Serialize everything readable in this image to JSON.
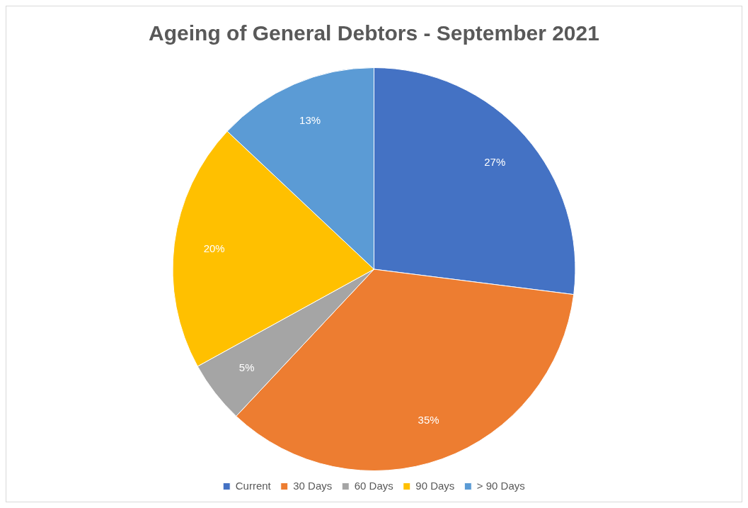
{
  "chart_data": {
    "type": "pie",
    "title": "Ageing of General Debtors - September 2021",
    "categories": [
      "Current",
      "30 Days",
      "60 Days",
      "90 Days",
      "> 90 Days"
    ],
    "values": [
      27,
      35,
      5,
      20,
      13
    ],
    "colors": [
      "#4472c4",
      "#ed7d31",
      "#a5a5a5",
      "#ffc000",
      "#5b9bd5"
    ],
    "value_labels": [
      "27%",
      "35%",
      "5%",
      "20%",
      "13%"
    ],
    "legend": "bottom"
  }
}
